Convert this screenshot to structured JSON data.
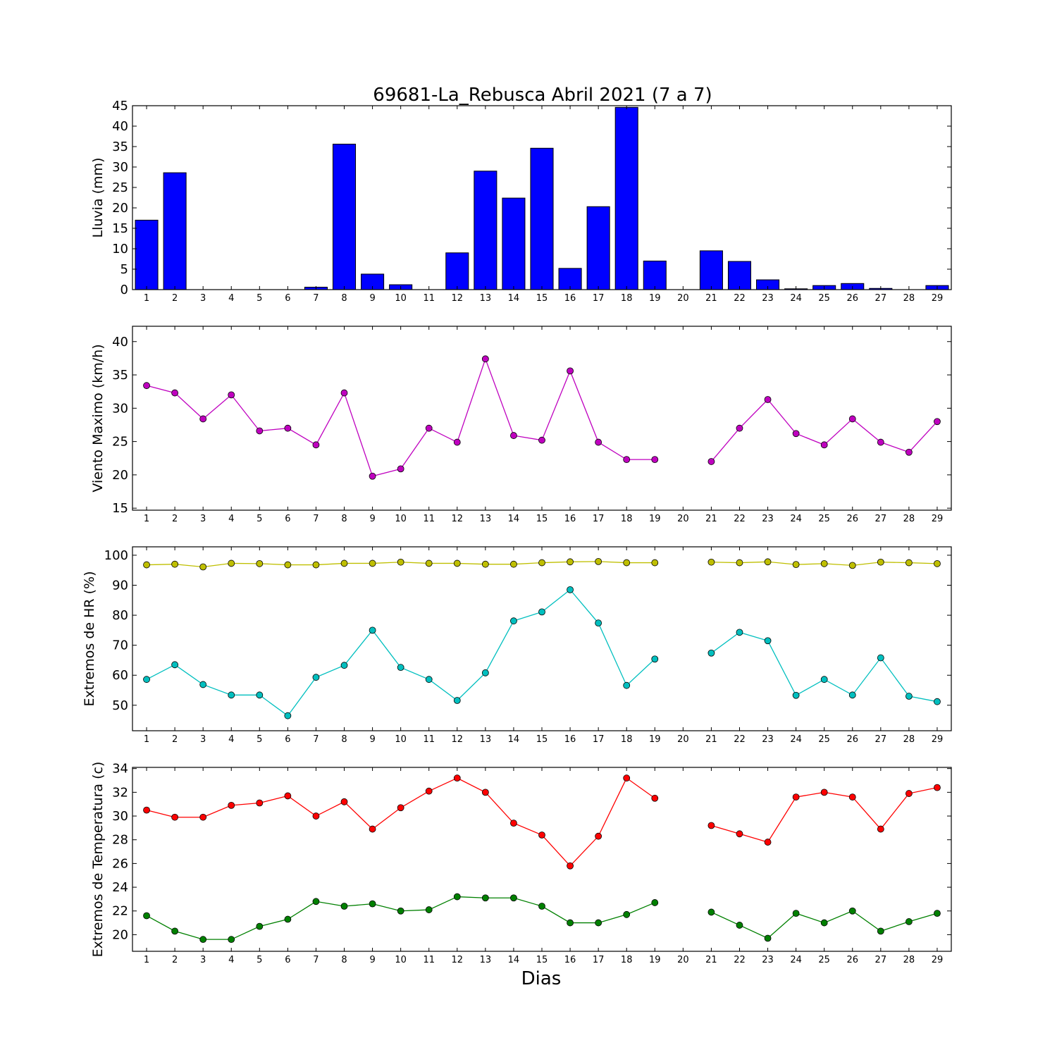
{
  "title": "69681-La_Rebusca Abril 2021  (7 a 7)",
  "xlabel": "Dias",
  "chart_data": [
    {
      "type": "bar",
      "ylabel": "Lluvia (mm)",
      "ylim": [
        0,
        45
      ],
      "yticks": [
        0,
        5,
        10,
        15,
        20,
        25,
        30,
        35,
        40,
        45
      ],
      "categories": [
        1,
        2,
        3,
        4,
        5,
        6,
        7,
        8,
        9,
        10,
        11,
        12,
        13,
        14,
        15,
        16,
        17,
        18,
        19,
        20,
        21,
        22,
        23,
        24,
        25,
        26,
        27,
        28,
        29
      ],
      "series": [
        {
          "color": "#0000ff",
          "values": [
            17.0,
            28.6,
            0,
            0,
            0,
            0,
            0.6,
            35.6,
            3.8,
            1.2,
            0,
            9.0,
            29.0,
            22.4,
            34.6,
            5.2,
            20.3,
            44.6,
            7.0,
            null,
            9.5,
            6.9,
            2.4,
            0.2,
            1.0,
            1.5,
            0.3,
            0,
            1.0
          ]
        }
      ]
    },
    {
      "type": "line",
      "ylabel": "Viento Maximo (km/h)",
      "ylim": [
        14.7,
        42.3
      ],
      "yticks": [
        15,
        20,
        25,
        30,
        35,
        40
      ],
      "categories": [
        1,
        2,
        3,
        4,
        5,
        6,
        7,
        8,
        9,
        10,
        11,
        12,
        13,
        14,
        15,
        16,
        17,
        18,
        19,
        20,
        21,
        22,
        23,
        24,
        25,
        26,
        27,
        28,
        29
      ],
      "series": [
        {
          "color": "#bf00bf",
          "values": [
            33.4,
            32.3,
            28.4,
            32.0,
            26.6,
            27.0,
            24.5,
            32.3,
            19.8,
            20.9,
            27.0,
            24.9,
            37.4,
            25.9,
            25.2,
            35.6,
            24.9,
            22.3,
            22.3,
            null,
            22.0,
            27.0,
            31.3,
            26.2,
            24.5,
            28.4,
            24.9,
            23.4,
            28.0
          ]
        }
      ]
    },
    {
      "type": "line",
      "ylabel": "Extremos de HR (%)",
      "ylim": [
        41.5,
        102.8
      ],
      "yticks": [
        50,
        60,
        70,
        80,
        90,
        100
      ],
      "categories": [
        1,
        2,
        3,
        4,
        5,
        6,
        7,
        8,
        9,
        10,
        11,
        12,
        13,
        14,
        15,
        16,
        17,
        18,
        19,
        20,
        21,
        22,
        23,
        24,
        25,
        26,
        27,
        28,
        29
      ],
      "series": [
        {
          "color": "#bfbf00",
          "values": [
            96.8,
            97.0,
            96.1,
            97.3,
            97.2,
            96.8,
            96.8,
            97.3,
            97.3,
            97.7,
            97.3,
            97.3,
            97.0,
            97.0,
            97.5,
            97.8,
            97.9,
            97.5,
            97.5,
            null,
            97.7,
            97.5,
            97.8,
            96.9,
            97.2,
            96.6,
            97.7,
            97.5,
            97.2
          ]
        },
        {
          "color": "#00bfbf",
          "values": [
            58.6,
            63.5,
            56.9,
            53.4,
            53.4,
            46.5,
            59.3,
            63.3,
            75.0,
            62.6,
            58.6,
            51.6,
            60.8,
            78.1,
            81.1,
            88.5,
            77.4,
            56.6,
            65.4,
            null,
            67.4,
            74.3,
            71.5,
            53.3,
            58.6,
            53.4,
            65.8,
            53.0,
            51.2
          ]
        }
      ]
    },
    {
      "type": "line",
      "ylabel": "Extremos de Temperatura (c)",
      "ylim": [
        18.6,
        34.1
      ],
      "yticks": [
        20,
        22,
        24,
        26,
        28,
        30,
        32,
        34
      ],
      "categories": [
        1,
        2,
        3,
        4,
        5,
        6,
        7,
        8,
        9,
        10,
        11,
        12,
        13,
        14,
        15,
        16,
        17,
        18,
        19,
        20,
        21,
        22,
        23,
        24,
        25,
        26,
        27,
        28,
        29
      ],
      "series": [
        {
          "color": "#ff0000",
          "values": [
            30.5,
            29.9,
            29.9,
            30.9,
            31.1,
            31.7,
            30.0,
            31.2,
            28.9,
            30.7,
            32.1,
            33.2,
            32.0,
            29.4,
            28.4,
            25.8,
            28.3,
            33.2,
            31.5,
            null,
            29.2,
            28.5,
            27.8,
            31.6,
            32.0,
            31.6,
            28.9,
            31.9,
            32.4
          ]
        },
        {
          "color": "#008000",
          "values": [
            21.6,
            20.3,
            19.6,
            19.6,
            20.7,
            21.3,
            22.8,
            22.4,
            22.6,
            22.0,
            22.1,
            23.2,
            23.1,
            23.1,
            22.4,
            21.0,
            21.0,
            21.7,
            22.7,
            null,
            21.9,
            20.8,
            19.7,
            21.8,
            21.0,
            22.0,
            20.3,
            21.1,
            21.8
          ]
        }
      ]
    }
  ]
}
